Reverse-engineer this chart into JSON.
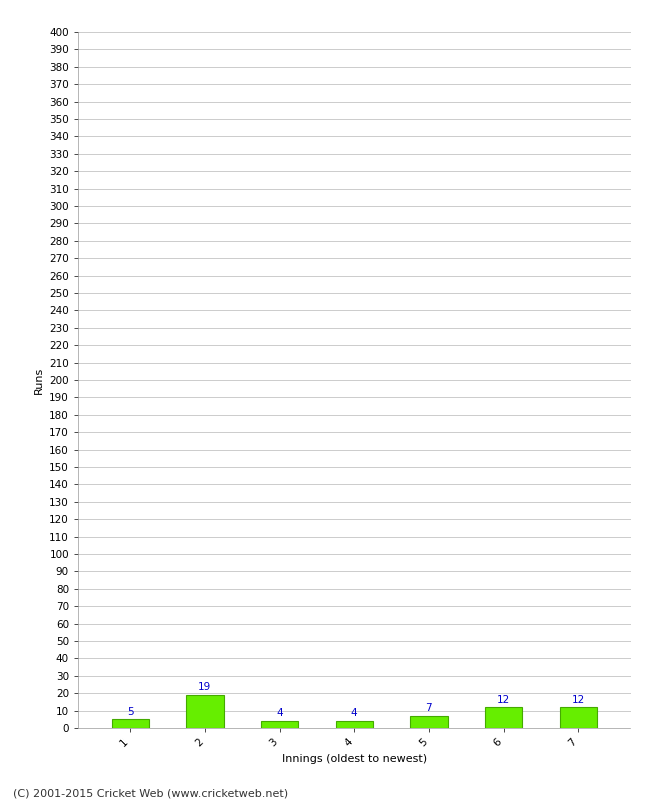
{
  "categories": [
    "1",
    "2",
    "3",
    "4",
    "5",
    "6",
    "7"
  ],
  "values": [
    5,
    19,
    4,
    4,
    7,
    12,
    12
  ],
  "bar_color": "#66ee00",
  "bar_edge_color": "#44aa00",
  "label_color": "#0000cc",
  "xlabel": "Innings (oldest to newest)",
  "ylabel": "Runs",
  "ylim": [
    0,
    400
  ],
  "background_color": "#ffffff",
  "grid_color": "#cccccc",
  "footer_text": "(C) 2001-2015 Cricket Web (www.cricketweb.net)",
  "label_fontsize": 7.5,
  "axis_label_fontsize": 8,
  "tick_fontsize": 7.5,
  "footer_fontsize": 8
}
